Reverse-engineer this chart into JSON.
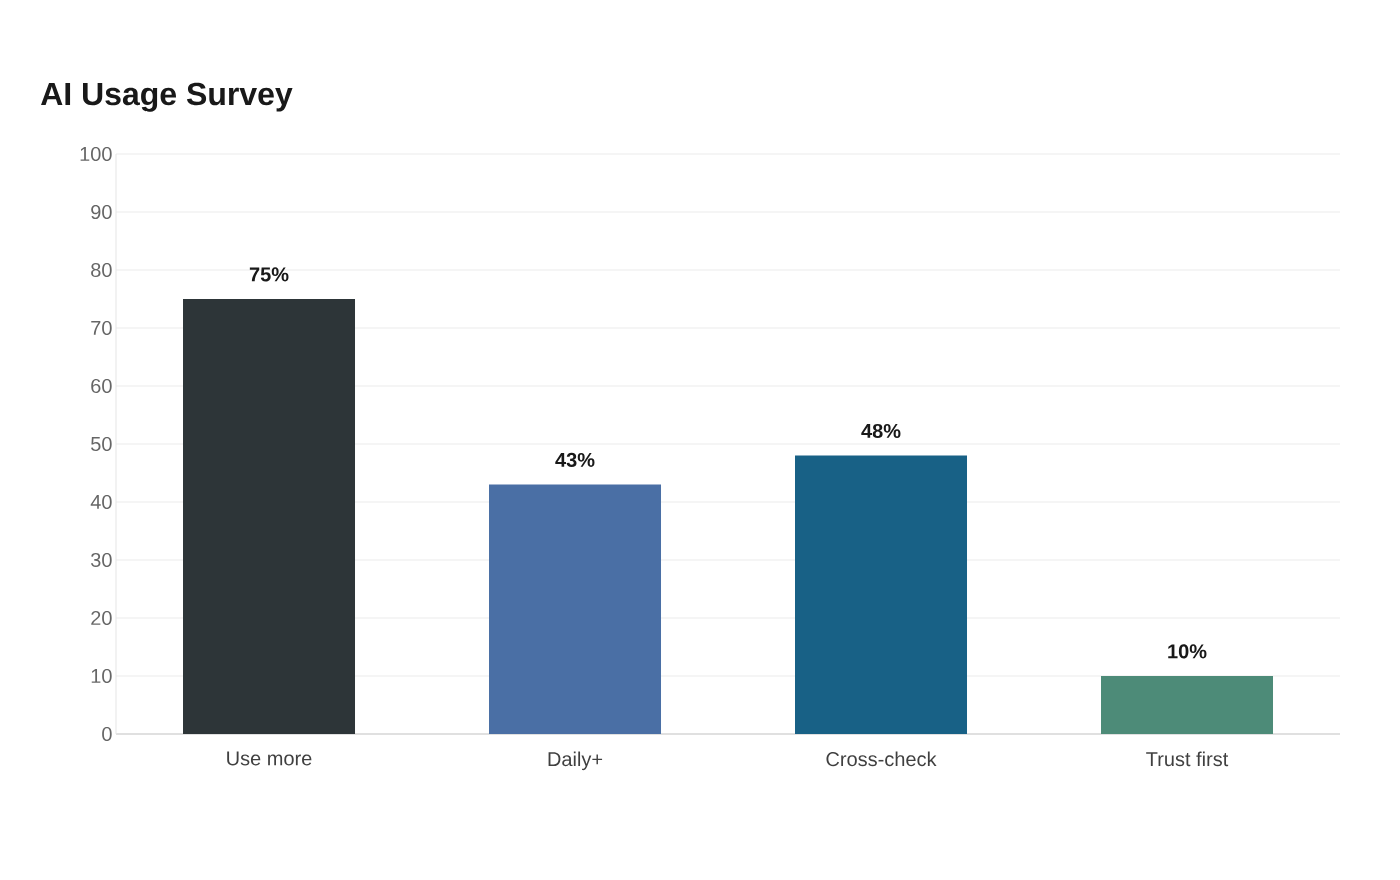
{
  "chart_data": {
    "type": "bar",
    "title": "AI Usage Survey",
    "categories": [
      "Use more",
      "Daily+",
      "Cross-check",
      "Trust first"
    ],
    "values": [
      75,
      43,
      48,
      10
    ],
    "colors": [
      "#2d3538",
      "#4a6fa5",
      "#186186",
      "#4d8b78"
    ],
    "value_labels": [
      "75%",
      "43%",
      "48%",
      "10%"
    ],
    "ylim": [
      0,
      100
    ],
    "yticks": [
      0,
      10,
      20,
      30,
      40,
      50,
      60,
      70,
      80,
      90,
      100
    ],
    "grid": "y"
  }
}
